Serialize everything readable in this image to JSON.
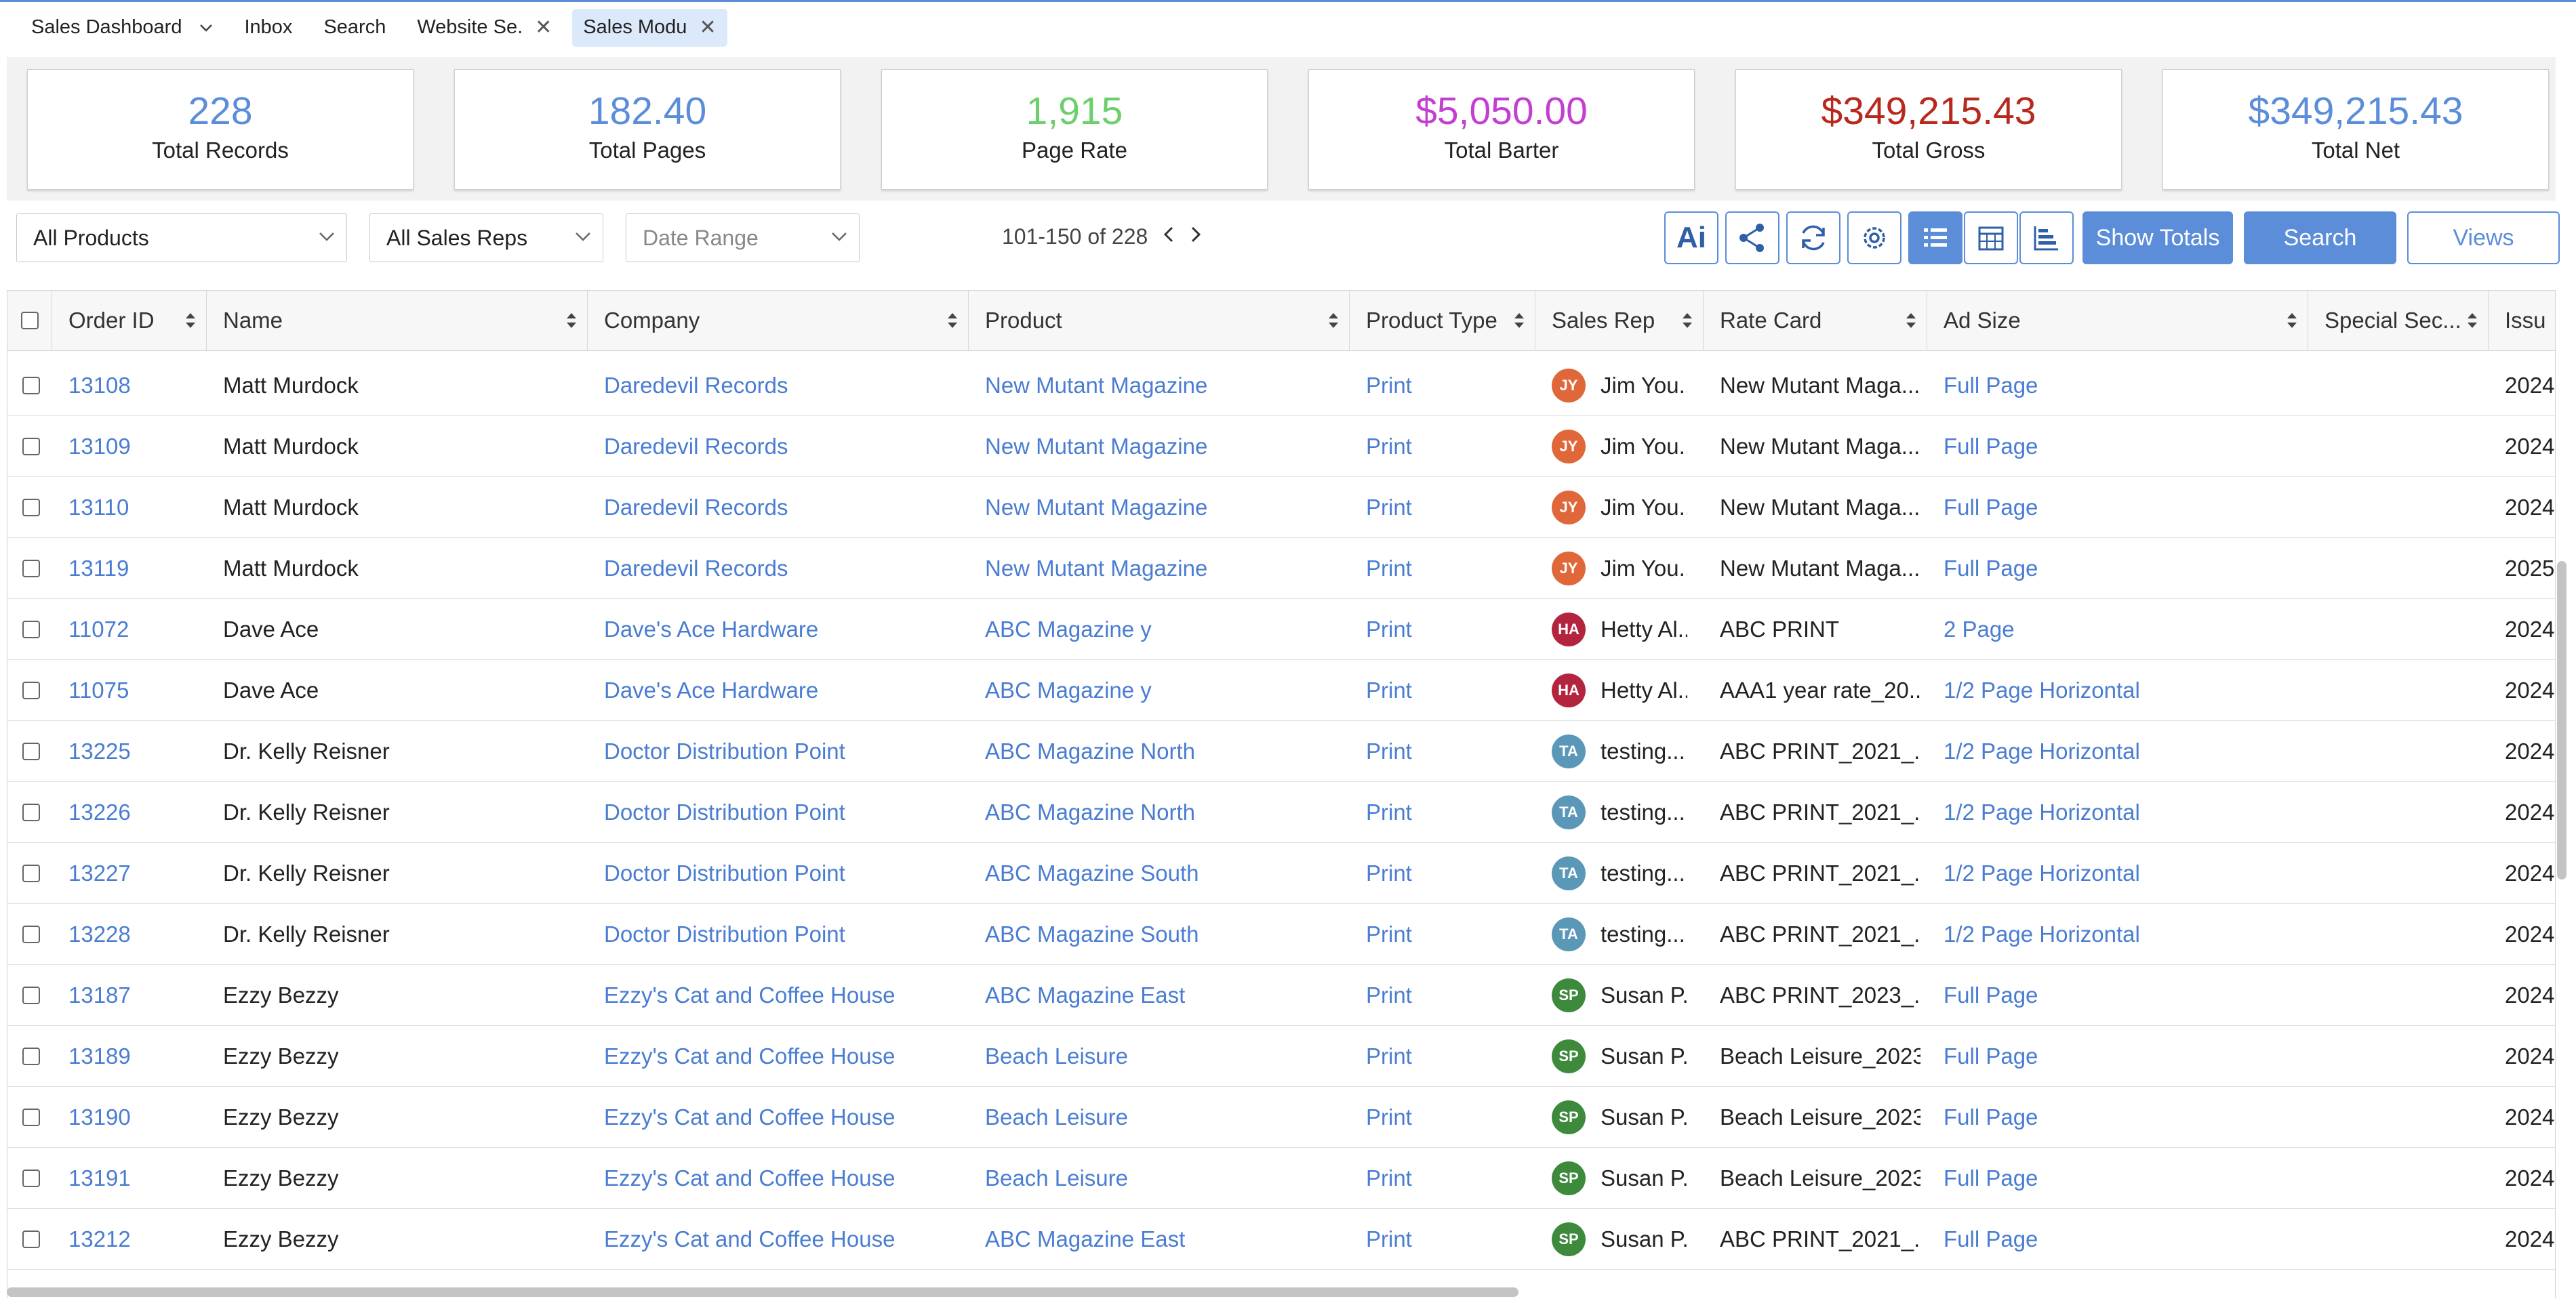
{
  "tabs": [
    {
      "label": "Sales Dashboard",
      "has_dropdown": true
    },
    {
      "label": "Inbox"
    },
    {
      "label": "Search"
    },
    {
      "label": "Website Se.",
      "closable": true
    },
    {
      "label": "Sales Modu",
      "closable": true,
      "active": true
    }
  ],
  "stats": [
    {
      "value": "228",
      "label": "Total Records",
      "color": "#5b8dd9"
    },
    {
      "value": "182.40",
      "label": "Total Pages",
      "color": "#5b8dd9"
    },
    {
      "value": "1,915",
      "label": "Page Rate",
      "color": "#6ccf6c"
    },
    {
      "value": "$5,050.00",
      "label": "Total Barter",
      "color": "#c23fd1"
    },
    {
      "value": "$349,215.43",
      "label": "Total Gross",
      "color": "#b8281d"
    },
    {
      "value": "$349,215.43",
      "label": "Total Net",
      "color": "#5b8dd9"
    }
  ],
  "filters": {
    "products": "All Products",
    "sales_reps": "All Sales Reps",
    "date_range": "Date Range"
  },
  "pager": {
    "range": "101-150 of 228"
  },
  "toolbar": {
    "ai_label": "Ai",
    "show_totals": "Show Totals",
    "search": "Search",
    "views": "Views"
  },
  "columns": [
    "Order ID",
    "Name",
    "Company",
    "Product",
    "Product Type",
    "Sales Rep",
    "Rate Card",
    "Ad Size",
    "Special Sec...",
    "Issu"
  ],
  "rows": [
    {
      "order_id": "13108",
      "name": "Matt Murdock",
      "company": "Daredevil Records",
      "product": "New Mutant Magazine",
      "type": "Print",
      "rep_initials": "JY",
      "rep_color": "#e0673a",
      "rep": "Jim You...",
      "rate_card": "New Mutant Maga...",
      "ad_size": "Full Page",
      "issue": "2024"
    },
    {
      "order_id": "13109",
      "name": "Matt Murdock",
      "company": "Daredevil Records",
      "product": "New Mutant Magazine",
      "type": "Print",
      "rep_initials": "JY",
      "rep_color": "#e0673a",
      "rep": "Jim You...",
      "rate_card": "New Mutant Maga...",
      "ad_size": "Full Page",
      "issue": "2024"
    },
    {
      "order_id": "13110",
      "name": "Matt Murdock",
      "company": "Daredevil Records",
      "product": "New Mutant Magazine",
      "type": "Print",
      "rep_initials": "JY",
      "rep_color": "#e0673a",
      "rep": "Jim You...",
      "rate_card": "New Mutant Maga...",
      "ad_size": "Full Page",
      "issue": "2024"
    },
    {
      "order_id": "13119",
      "name": "Matt Murdock",
      "company": "Daredevil Records",
      "product": "New Mutant Magazine",
      "type": "Print",
      "rep_initials": "JY",
      "rep_color": "#e0673a",
      "rep": "Jim You...",
      "rate_card": "New Mutant Maga...",
      "ad_size": "Full Page",
      "issue": "2025"
    },
    {
      "order_id": "11072",
      "name": "Dave Ace",
      "company": "Dave's Ace Hardware",
      "product": "ABC Magazine y",
      "type": "Print",
      "rep_initials": "HA",
      "rep_color": "#b3243f",
      "rep": "Hetty Al...",
      "rate_card": "ABC PRINT",
      "ad_size": "2 Page",
      "issue": "2024"
    },
    {
      "order_id": "11075",
      "name": "Dave Ace",
      "company": "Dave's Ace Hardware",
      "product": "ABC Magazine y",
      "type": "Print",
      "rep_initials": "HA",
      "rep_color": "#b3243f",
      "rep": "Hetty Al...",
      "rate_card": "AAA1 year rate_20...",
      "ad_size": "1/2 Page Horizontal",
      "issue": "2024"
    },
    {
      "order_id": "13225",
      "name": "Dr. Kelly Reisner",
      "company": "Doctor Distribution Point",
      "product": "ABC Magazine North",
      "type": "Print",
      "rep_initials": "TA",
      "rep_color": "#5b98b8",
      "rep": "testing...",
      "rate_card": "ABC PRINT_2021_...",
      "ad_size": "1/2 Page Horizontal",
      "issue": "2024"
    },
    {
      "order_id": "13226",
      "name": "Dr. Kelly Reisner",
      "company": "Doctor Distribution Point",
      "product": "ABC Magazine North",
      "type": "Print",
      "rep_initials": "TA",
      "rep_color": "#5b98b8",
      "rep": "testing...",
      "rate_card": "ABC PRINT_2021_...",
      "ad_size": "1/2 Page Horizontal",
      "issue": "2024"
    },
    {
      "order_id": "13227",
      "name": "Dr. Kelly Reisner",
      "company": "Doctor Distribution Point",
      "product": "ABC Magazine South",
      "type": "Print",
      "rep_initials": "TA",
      "rep_color": "#5b98b8",
      "rep": "testing...",
      "rate_card": "ABC PRINT_2021_...",
      "ad_size": "1/2 Page Horizontal",
      "issue": "2024"
    },
    {
      "order_id": "13228",
      "name": "Dr. Kelly Reisner",
      "company": "Doctor Distribution Point",
      "product": "ABC Magazine South",
      "type": "Print",
      "rep_initials": "TA",
      "rep_color": "#5b98b8",
      "rep": "testing...",
      "rate_card": "ABC PRINT_2021_...",
      "ad_size": "1/2 Page Horizontal",
      "issue": "2024"
    },
    {
      "order_id": "13187",
      "name": "Ezzy Bezzy",
      "company": "Ezzy's Cat and Coffee House",
      "product": "ABC Magazine East",
      "type": "Print",
      "rep_initials": "SP",
      "rep_color": "#3d8a3d",
      "rep": "Susan P...",
      "rate_card": "ABC PRINT_2023_...",
      "ad_size": "Full Page",
      "issue": "2024"
    },
    {
      "order_id": "13189",
      "name": "Ezzy Bezzy",
      "company": "Ezzy's Cat and Coffee House",
      "product": "Beach Leisure",
      "type": "Print",
      "rep_initials": "SP",
      "rep_color": "#3d8a3d",
      "rep": "Susan P...",
      "rate_card": "Beach Leisure_2023",
      "ad_size": "Full Page",
      "issue": "2024"
    },
    {
      "order_id": "13190",
      "name": "Ezzy Bezzy",
      "company": "Ezzy's Cat and Coffee House",
      "product": "Beach Leisure",
      "type": "Print",
      "rep_initials": "SP",
      "rep_color": "#3d8a3d",
      "rep": "Susan P...",
      "rate_card": "Beach Leisure_2023",
      "ad_size": "Full Page",
      "issue": "2024"
    },
    {
      "order_id": "13191",
      "name": "Ezzy Bezzy",
      "company": "Ezzy's Cat and Coffee House",
      "product": "Beach Leisure",
      "type": "Print",
      "rep_initials": "SP",
      "rep_color": "#3d8a3d",
      "rep": "Susan P...",
      "rate_card": "Beach Leisure_2023",
      "ad_size": "Full Page",
      "issue": "2024"
    },
    {
      "order_id": "13212",
      "name": "Ezzy Bezzy",
      "company": "Ezzy's Cat and Coffee House",
      "product": "ABC Magazine East",
      "type": "Print",
      "rep_initials": "SP",
      "rep_color": "#3d8a3d",
      "rep": "Susan P...",
      "rate_card": "ABC PRINT_2021_...",
      "ad_size": "Full Page",
      "issue": "2024"
    }
  ]
}
